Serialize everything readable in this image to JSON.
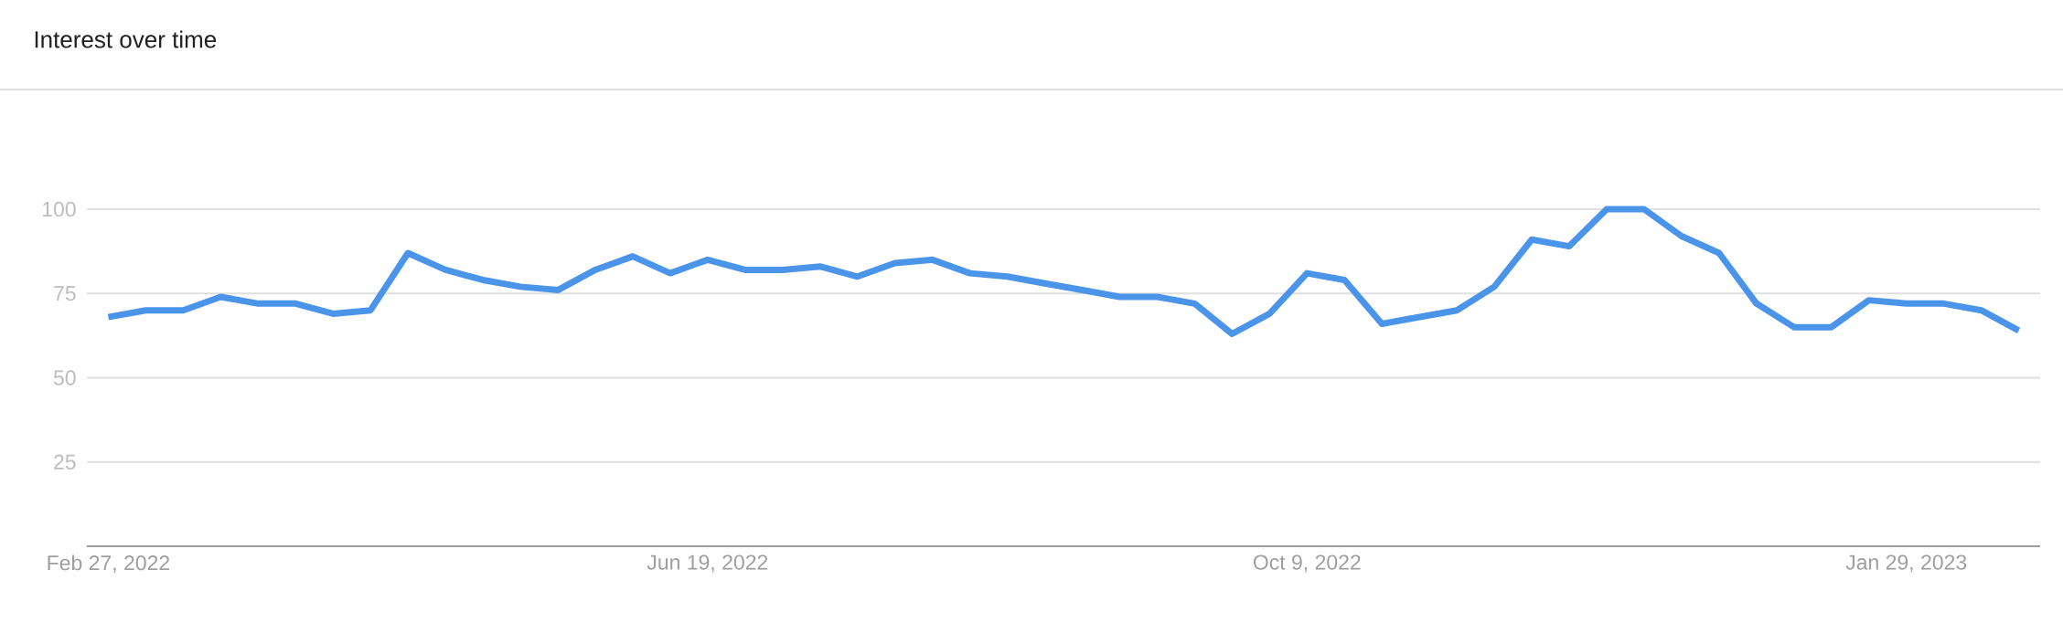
{
  "chart_data": {
    "type": "line",
    "title": "Interest over time",
    "x": [
      "2022-02-27",
      "2022-03-06",
      "2022-03-13",
      "2022-03-20",
      "2022-03-27",
      "2022-04-03",
      "2022-04-10",
      "2022-04-17",
      "2022-04-24",
      "2022-05-01",
      "2022-05-08",
      "2022-05-15",
      "2022-05-22",
      "2022-05-29",
      "2022-06-05",
      "2022-06-12",
      "2022-06-19",
      "2022-06-26",
      "2022-07-03",
      "2022-07-10",
      "2022-07-17",
      "2022-07-24",
      "2022-07-31",
      "2022-08-07",
      "2022-08-14",
      "2022-08-21",
      "2022-08-28",
      "2022-09-04",
      "2022-09-11",
      "2022-09-18",
      "2022-09-25",
      "2022-10-02",
      "2022-10-09",
      "2022-10-16",
      "2022-10-23",
      "2022-10-30",
      "2022-11-06",
      "2022-11-13",
      "2022-11-20",
      "2022-11-27",
      "2022-12-04",
      "2022-12-11",
      "2022-12-18",
      "2022-12-25",
      "2023-01-01",
      "2023-01-08",
      "2023-01-15",
      "2023-01-22",
      "2023-01-29",
      "2023-02-05",
      "2023-02-12",
      "2023-02-19"
    ],
    "series": [
      {
        "color": "#4a94ea",
        "values": [
          68,
          70,
          70,
          74,
          72,
          72,
          69,
          70,
          87,
          82,
          79,
          77,
          76,
          82,
          86,
          81,
          85,
          82,
          82,
          83,
          80,
          84,
          85,
          81,
          80,
          78,
          76,
          74,
          74,
          72,
          63,
          69,
          81,
          79,
          66,
          68,
          70,
          77,
          91,
          89,
          100,
          100,
          92,
          87,
          72,
          65,
          65,
          73,
          72,
          72,
          70,
          64
        ]
      }
    ],
    "xlim": [
      "2022-02-23",
      "2023-02-23"
    ],
    "ylim": [
      0,
      100
    ],
    "xticks": [
      {
        "value": "2022-02-27",
        "label": "Feb 27, 2022"
      },
      {
        "value": "2022-06-19",
        "label": "Jun 19, 2022"
      },
      {
        "value": "2022-10-09",
        "label": "Oct 9, 2022"
      },
      {
        "value": "2023-01-29",
        "label": "Jan 29, 2023"
      }
    ],
    "yticks": [
      25,
      50,
      75,
      100
    ],
    "grid": "y",
    "line_style": "solid"
  }
}
